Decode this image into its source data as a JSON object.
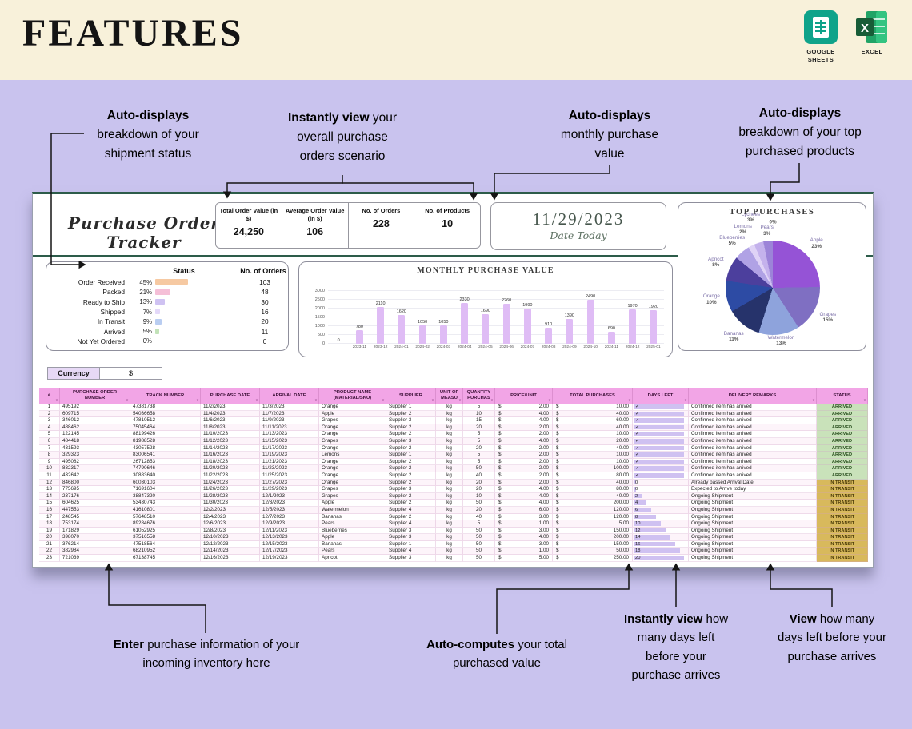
{
  "header": {
    "title": "FEATURES",
    "apps": [
      {
        "label": "GOOGLE SHEETS"
      },
      {
        "label": "EXCEL"
      }
    ]
  },
  "annotations": {
    "top": [
      {
        "bold": "Auto-displays",
        "rest": " breakdown of your shipment status"
      },
      {
        "bold": "Instantly view",
        "rest": " your overall purchase orders scenario"
      },
      {
        "bold": "Auto-displays",
        "rest": " monthly purchase value"
      },
      {
        "bold": "Auto-displays",
        "rest": " breakdown of your top purchased products"
      }
    ],
    "bottom": [
      {
        "bold": "Enter",
        "rest": " purchase information of your incoming inventory here"
      },
      {
        "bold": "Auto-computes",
        "rest": " your total purchased value"
      },
      {
        "bold": "Instantly view",
        "rest": " how many days left before your purchase arrives"
      },
      {
        "bold": "View",
        "rest": " how many days left before your purchase arrives"
      }
    ]
  },
  "sheet": {
    "title": "Purchase Order Tracker",
    "stats": [
      {
        "label": "Total Order Value (in $)",
        "value": "24,250"
      },
      {
        "label": "Average Order Value (in $)",
        "value": "106"
      },
      {
        "label": "No. of Orders",
        "value": "228"
      },
      {
        "label": "No. of Products",
        "value": "10"
      }
    ],
    "date": {
      "value": "11/29/2023",
      "label": "Date Today"
    },
    "status_panel": {
      "headers": [
        "Status",
        "No. of Orders"
      ],
      "rows": [
        {
          "label": "Order Received",
          "pct": "45%",
          "orders": "103",
          "bar_color": "#f6c9a2"
        },
        {
          "label": "Packed",
          "pct": "21%",
          "orders": "48",
          "bar_color": "#f5bfd7"
        },
        {
          "label": "Ready to Ship",
          "pct": "13%",
          "orders": "30",
          "bar_color": "#cfc2f2"
        },
        {
          "label": "Shipped",
          "pct": "7%",
          "orders": "16",
          "bar_color": "#e4d9f9"
        },
        {
          "label": "In Transit",
          "pct": "9%",
          "orders": "20",
          "bar_color": "#b9cdf1"
        },
        {
          "label": "Arrived",
          "pct": "5%",
          "orders": "11",
          "bar_color": "#c2e2b8"
        },
        {
          "label": "Not Yet Ordered",
          "pct": "0%",
          "orders": "0",
          "bar_color": "#ffffff"
        }
      ]
    },
    "currency": {
      "label": "Currency",
      "value": "$"
    }
  },
  "chart_data": [
    {
      "type": "bar",
      "title": "MONTHLY PURCHASE VALUE",
      "categories": [
        "",
        "2023-11",
        "2023-12",
        "2024-01",
        "2024-02",
        "2024-03",
        "2024-04",
        "2024-05",
        "2024-06",
        "2024-07",
        "2024-08",
        "2024-09",
        "2024-10",
        "2024-11",
        "2024-12",
        "2025-01"
      ],
      "values": [
        0,
        780,
        2110,
        1620,
        1050,
        1050,
        2330,
        1690,
        2260,
        1990,
        910,
        1390,
        2490,
        690,
        1970,
        1920
      ],
      "ylim": [
        0,
        3000
      ],
      "yticks": [
        0,
        500,
        1000,
        1500,
        2000,
        2500,
        3000
      ],
      "bar_color": "#dfbcf5",
      "xlabel": "",
      "ylabel": ""
    },
    {
      "type": "pie",
      "title": "TOP PURCHASES",
      "slices": [
        {
          "label": "Apple",
          "value": 23,
          "color": "#9553d6"
        },
        {
          "label": "Grapes",
          "value": 15,
          "color": "#7f6fc2"
        },
        {
          "label": "Watermelon",
          "value": 13,
          "color": "#8ea3dc"
        },
        {
          "label": "Bananas",
          "value": 11,
          "color": "#26336b"
        },
        {
          "label": "Orange",
          "value": 10,
          "color": "#2d4ba4"
        },
        {
          "label": "Apricot",
          "value": 8,
          "color": "#4c3f9d"
        },
        {
          "label": "Blueberries",
          "value": 5,
          "color": "#b0a2e5"
        },
        {
          "label": "Lemons",
          "value": 2,
          "color": "#dfd3f6"
        },
        {
          "label": "Lychees",
          "value": 3,
          "color": "#c4b2ec"
        },
        {
          "label": "Pears",
          "value": 3,
          "color": "#9c84d8"
        },
        {
          "label": "",
          "value": 0,
          "color": "#e8e0f8"
        }
      ]
    }
  ],
  "table": {
    "currency_symbol": "$",
    "filter_icon": "▼",
    "headers": [
      "#",
      "PURCHASE ORDER NUMBER",
      "TRACK NUMBER",
      "PURCHASE DATE",
      "ARRIVAL DATE",
      "PRODUCT NAME (MATERIAL/SKU)",
      "SUPPLIER",
      "UNIT OF MEASU",
      "QUANTITY PURCHAS",
      "PRICE/UNIT",
      "TOTAL PURCHASES",
      "DAYS LEFT",
      "DELIVERY REMARKS",
      "STATUS"
    ],
    "rows": [
      {
        "num": "1",
        "po": "495192",
        "track": "47381738",
        "purchase_date": "11/2/2023",
        "arrival_date": "11/3/2023",
        "product": "Orange",
        "supplier": "Supplier 1",
        "unit": "kg",
        "qty": "5",
        "price": "2.00",
        "total": "10.00",
        "days_left": "✓",
        "remarks": "Confirmed item has arrived",
        "status": "ARRIVED"
      },
      {
        "num": "2",
        "po": "609715",
        "track": "54036658",
        "purchase_date": "11/4/2023",
        "arrival_date": "11/7/2023",
        "product": "Apple",
        "supplier": "Supplier 2",
        "unit": "kg",
        "qty": "10",
        "price": "4.00",
        "total": "40.00",
        "days_left": "✓",
        "remarks": "Confirmed item has arrived",
        "status": "ARRIVED"
      },
      {
        "num": "3",
        "po": "346012",
        "track": "47810512",
        "purchase_date": "11/6/2023",
        "arrival_date": "11/9/2023",
        "product": "Grapes",
        "supplier": "Supplier 3",
        "unit": "kg",
        "qty": "15",
        "price": "4.00",
        "total": "60.00",
        "days_left": "✓",
        "remarks": "Confirmed item has arrived",
        "status": "ARRIVED"
      },
      {
        "num": "4",
        "po": "488462",
        "track": "75045464",
        "purchase_date": "11/8/2023",
        "arrival_date": "11/11/2023",
        "product": "Orange",
        "supplier": "Supplier 2",
        "unit": "kg",
        "qty": "20",
        "price": "2.00",
        "total": "40.00",
        "days_left": "✓",
        "remarks": "Confirmed item has arrived",
        "status": "ARRIVED"
      },
      {
        "num": "5",
        "po": "122145",
        "track": "88199426",
        "purchase_date": "11/10/2023",
        "arrival_date": "11/13/2023",
        "product": "Orange",
        "supplier": "Supplier 2",
        "unit": "kg",
        "qty": "5",
        "price": "2.00",
        "total": "10.00",
        "days_left": "✓",
        "remarks": "Confirmed item has arrived",
        "status": "ARRIVED"
      },
      {
        "num": "6",
        "po": "484418",
        "track": "81988528",
        "purchase_date": "11/12/2023",
        "arrival_date": "11/15/2023",
        "product": "Grapes",
        "supplier": "Supplier 3",
        "unit": "kg",
        "qty": "5",
        "price": "4.00",
        "total": "20.00",
        "days_left": "✓",
        "remarks": "Confirmed item has arrived",
        "status": "ARRIVED"
      },
      {
        "num": "7",
        "po": "431593",
        "track": "43057528",
        "purchase_date": "11/14/2023",
        "arrival_date": "11/17/2023",
        "product": "Orange",
        "supplier": "Supplier 2",
        "unit": "kg",
        "qty": "20",
        "price": "2.00",
        "total": "40.00",
        "days_left": "✓",
        "remarks": "Confirmed item has arrived",
        "status": "ARRIVED"
      },
      {
        "num": "8",
        "po": "329323",
        "track": "83006541",
        "purchase_date": "11/16/2023",
        "arrival_date": "11/19/2023",
        "product": "Lemons",
        "supplier": "Supplier 1",
        "unit": "kg",
        "qty": "5",
        "price": "2.00",
        "total": "10.00",
        "days_left": "✓",
        "remarks": "Confirmed item has arrived",
        "status": "ARRIVED"
      },
      {
        "num": "9",
        "po": "495082",
        "track": "26712853",
        "purchase_date": "11/18/2023",
        "arrival_date": "11/21/2023",
        "product": "Orange",
        "supplier": "Supplier 2",
        "unit": "kg",
        "qty": "5",
        "price": "2.00",
        "total": "10.00",
        "days_left": "✓",
        "remarks": "Confirmed item has arrived",
        "status": "ARRIVED"
      },
      {
        "num": "10",
        "po": "832317",
        "track": "74790646",
        "purchase_date": "11/20/2023",
        "arrival_date": "11/23/2023",
        "product": "Orange",
        "supplier": "Supplier 2",
        "unit": "kg",
        "qty": "50",
        "price": "2.00",
        "total": "100.00",
        "days_left": "✓",
        "remarks": "Confirmed item has arrived",
        "status": "ARRIVED"
      },
      {
        "num": "11",
        "po": "432642",
        "track": "30883640",
        "purchase_date": "11/22/2023",
        "arrival_date": "11/25/2023",
        "product": "Orange",
        "supplier": "Supplier 2",
        "unit": "kg",
        "qty": "40",
        "price": "2.00",
        "total": "80.00",
        "days_left": "✓",
        "remarks": "Confirmed item has arrived",
        "status": "ARRIVED"
      },
      {
        "num": "12",
        "po": "846800",
        "track": "60030103",
        "purchase_date": "11/24/2023",
        "arrival_date": "11/27/2023",
        "product": "Orange",
        "supplier": "Supplier 2",
        "unit": "kg",
        "qty": "20",
        "price": "2.00",
        "total": "40.00",
        "days_left": "0",
        "remarks": "Already passed Arrival Date",
        "status": "IN TRANSIT"
      },
      {
        "num": "13",
        "po": "775695",
        "track": "71691604",
        "purchase_date": "11/26/2023",
        "arrival_date": "11/29/2023",
        "product": "Grapes",
        "supplier": "Supplier 3",
        "unit": "kg",
        "qty": "20",
        "price": "4.00",
        "total": "80.00",
        "days_left": "0",
        "remarks": "Expected to Arrive today",
        "status": "IN TRANSIT"
      },
      {
        "num": "14",
        "po": "237176",
        "track": "38847320",
        "purchase_date": "11/28/2023",
        "arrival_date": "12/1/2023",
        "product": "Grapes",
        "supplier": "Supplier 2",
        "unit": "kg",
        "qty": "10",
        "price": "4.00",
        "total": "40.00",
        "days_left": "2",
        "remarks": "Ongoing Shipment",
        "status": "IN TRANSIT"
      },
      {
        "num": "15",
        "po": "604625",
        "track": "53430743",
        "purchase_date": "11/30/2023",
        "arrival_date": "12/3/2023",
        "product": "Apple",
        "supplier": "Supplier 2",
        "unit": "kg",
        "qty": "50",
        "price": "4.00",
        "total": "200.00",
        "days_left": "4",
        "remarks": "Ongoing Shipment",
        "status": "IN TRANSIT"
      },
      {
        "num": "16",
        "po": "447553",
        "track": "41610801",
        "purchase_date": "12/2/2023",
        "arrival_date": "12/5/2023",
        "product": "Watermelon",
        "supplier": "Supplier 4",
        "unit": "kg",
        "qty": "20",
        "price": "6.00",
        "total": "120.00",
        "days_left": "6",
        "remarks": "Ongoing Shipment",
        "status": "IN TRANSIT"
      },
      {
        "num": "17",
        "po": "248545",
        "track": "57648510",
        "purchase_date": "12/4/2023",
        "arrival_date": "12/7/2023",
        "product": "Bananas",
        "supplier": "Supplier 2",
        "unit": "kg",
        "qty": "40",
        "price": "3.00",
        "total": "120.00",
        "days_left": "8",
        "remarks": "Ongoing Shipment",
        "status": "IN TRANSIT"
      },
      {
        "num": "18",
        "po": "753174",
        "track": "89284676",
        "purchase_date": "12/6/2023",
        "arrival_date": "12/9/2023",
        "product": "Pears",
        "supplier": "Supplier 4",
        "unit": "kg",
        "qty": "5",
        "price": "1.00",
        "total": "5.00",
        "days_left": "10",
        "remarks": "Ongoing Shipment",
        "status": "IN TRANSIT"
      },
      {
        "num": "19",
        "po": "171829",
        "track": "61052925",
        "purchase_date": "12/8/2023",
        "arrival_date": "12/11/2023",
        "product": "Blueberries",
        "supplier": "Supplier 3",
        "unit": "kg",
        "qty": "50",
        "price": "3.00",
        "total": "150.00",
        "days_left": "12",
        "remarks": "Ongoing Shipment",
        "status": "IN TRANSIT"
      },
      {
        "num": "20",
        "po": "398070",
        "track": "37516558",
        "purchase_date": "12/10/2023",
        "arrival_date": "12/13/2023",
        "product": "Apple",
        "supplier": "Supplier 3",
        "unit": "kg",
        "qty": "50",
        "price": "4.00",
        "total": "200.00",
        "days_left": "14",
        "remarks": "Ongoing Shipment",
        "status": "IN TRANSIT"
      },
      {
        "num": "21",
        "po": "376214",
        "track": "47518564",
        "purchase_date": "12/12/2023",
        "arrival_date": "12/15/2023",
        "product": "Bananas",
        "supplier": "Supplier 1",
        "unit": "kg",
        "qty": "50",
        "price": "3.00",
        "total": "150.00",
        "days_left": "16",
        "remarks": "Ongoing Shipment",
        "status": "IN TRANSIT"
      },
      {
        "num": "22",
        "po": "382984",
        "track": "68210952",
        "purchase_date": "12/14/2023",
        "arrival_date": "12/17/2023",
        "product": "Pears",
        "supplier": "Supplier 4",
        "unit": "kg",
        "qty": "50",
        "price": "1.00",
        "total": "50.00",
        "days_left": "18",
        "remarks": "Ongoing Shipment",
        "status": "IN TRANSIT"
      },
      {
        "num": "23",
        "po": "721039",
        "track": "67138745",
        "purchase_date": "12/16/2023",
        "arrival_date": "12/19/2023",
        "product": "Apricot",
        "supplier": "Supplier 3",
        "unit": "kg",
        "qty": "50",
        "price": "5.00",
        "total": "250.00",
        "days_left": "20",
        "remarks": "Ongoing Shipment",
        "status": "IN TRANSIT"
      }
    ]
  }
}
